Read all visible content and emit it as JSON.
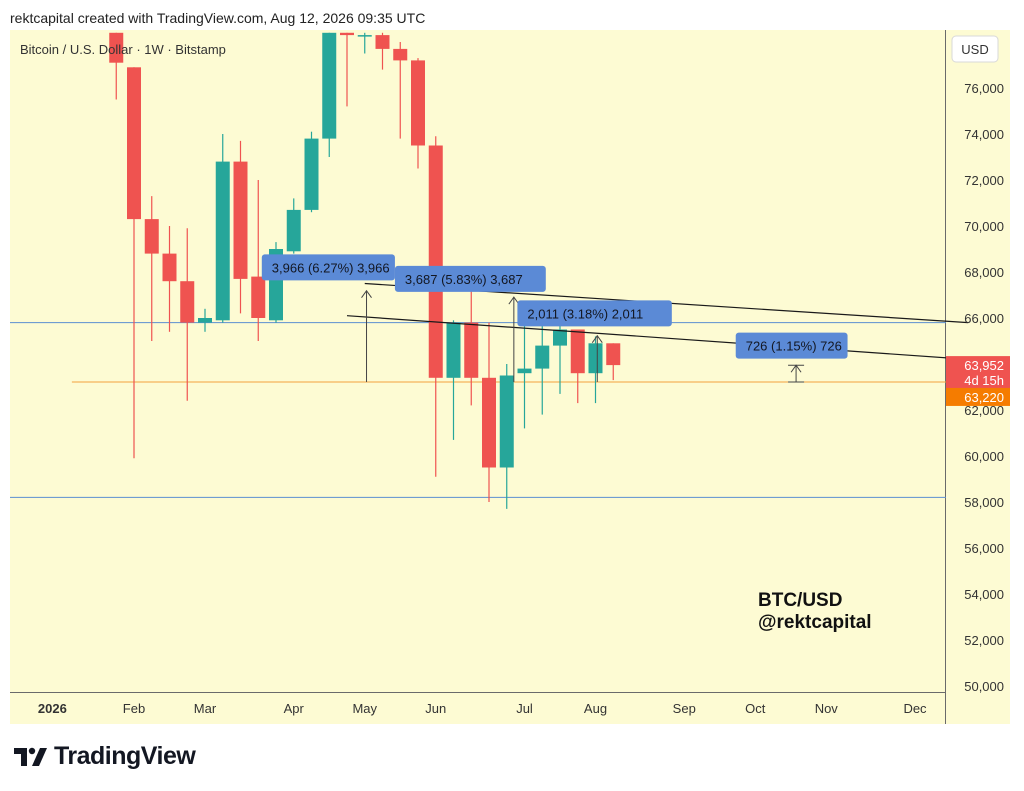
{
  "header": {
    "text": "rektcapital created with TradingView.com, Aug 12, 2026 09:35 UTC"
  },
  "footer": {
    "logo_text": "TradingView"
  },
  "chart_data": {
    "type": "candlestick",
    "symbol_label": "Bitcoin / U.S. Dollar · 1W · Bitstamp",
    "currency_label": "USD",
    "ylim": [
      49500,
      78400
    ],
    "y_ticks": [
      {
        "v": 50000,
        "label": "50,000"
      },
      {
        "v": 52000,
        "label": "52,000"
      },
      {
        "v": 54000,
        "label": "54,000"
      },
      {
        "v": 56000,
        "label": "56,000"
      },
      {
        "v": 58000,
        "label": "58,000"
      },
      {
        "v": 60000,
        "label": "60,000"
      },
      {
        "v": 62000,
        "label": "62,000"
      },
      {
        "v": 64000,
        "label": "64,000"
      },
      {
        "v": 66000,
        "label": "66,000"
      },
      {
        "v": 68000,
        "label": "68,000"
      },
      {
        "v": 70000,
        "label": "70,000"
      },
      {
        "v": 72000,
        "label": "72,000"
      },
      {
        "v": 74000,
        "label": "74,000"
      },
      {
        "v": 76000,
        "label": "76,000"
      }
    ],
    "x_labels": [
      {
        "week": -4.6,
        "label": "2026",
        "bold": true
      },
      {
        "week": 0,
        "label": "Feb"
      },
      {
        "week": 4,
        "label": "Mar"
      },
      {
        "week": 9,
        "label": "Apr"
      },
      {
        "week": 13,
        "label": "May"
      },
      {
        "week": 17,
        "label": "Jun"
      },
      {
        "week": 22,
        "label": "Jul"
      },
      {
        "week": 26,
        "label": "Aug"
      },
      {
        "week": 31,
        "label": "Sep"
      },
      {
        "week": 35,
        "label": "Oct"
      },
      {
        "week": 39,
        "label": "Nov"
      },
      {
        "week": 44,
        "label": "Dec"
      }
    ],
    "candles": [
      {
        "week": -1,
        "o": 78400,
        "h": 78400,
        "c": 77100,
        "l": 75500
      },
      {
        "week": 0,
        "o": 76900,
        "h": 76900,
        "c": 70300,
        "l": 59900
      },
      {
        "week": 1,
        "o": 70300,
        "h": 71300,
        "c": 68800,
        "l": 65000
      },
      {
        "week": 2,
        "o": 68800,
        "h": 70000,
        "c": 67600,
        "l": 65400
      },
      {
        "week": 3,
        "o": 67600,
        "h": 69900,
        "c": 65800,
        "l": 62400
      },
      {
        "week": 4,
        "o": 65800,
        "h": 66400,
        "c": 66000,
        "l": 65400
      },
      {
        "week": 5,
        "o": 65900,
        "h": 74000,
        "c": 72800,
        "l": 65800
      },
      {
        "week": 6,
        "o": 72800,
        "h": 73700,
        "c": 67700,
        "l": 66200
      },
      {
        "week": 7,
        "o": 67800,
        "h": 72000,
        "c": 66000,
        "l": 65000
      },
      {
        "week": 8,
        "o": 65900,
        "h": 69300,
        "c": 69000,
        "l": 65800
      },
      {
        "week": 9,
        "o": 68900,
        "h": 71200,
        "c": 70700,
        "l": 68800
      },
      {
        "week": 10,
        "o": 70700,
        "h": 74100,
        "c": 73800,
        "l": 70600
      },
      {
        "week": 11,
        "o": 73800,
        "h": 78400,
        "c": 78400,
        "l": 73000
      },
      {
        "week": 12,
        "o": 78400,
        "h": 78400,
        "c": 78300,
        "l": 75200
      },
      {
        "week": 13,
        "o": 78300,
        "h": 78400,
        "c": 78300,
        "l": 77500
      },
      {
        "week": 14,
        "o": 78300,
        "h": 78400,
        "c": 77700,
        "l": 76800
      },
      {
        "week": 15,
        "o": 77700,
        "h": 78000,
        "c": 77200,
        "l": 73800
      },
      {
        "week": 16,
        "o": 77200,
        "h": 77300,
        "c": 73500,
        "l": 72500
      },
      {
        "week": 17,
        "o": 73500,
        "h": 73900,
        "c": 63400,
        "l": 59100
      },
      {
        "week": 18,
        "o": 63400,
        "h": 65900,
        "c": 65800,
        "l": 60700
      },
      {
        "week": 19,
        "o": 65800,
        "h": 67200,
        "c": 63400,
        "l": 62200
      },
      {
        "week": 20,
        "o": 63400,
        "h": 65800,
        "c": 59500,
        "l": 58000
      },
      {
        "week": 21,
        "o": 59500,
        "h": 64000,
        "c": 63500,
        "l": 57700
      },
      {
        "week": 22,
        "o": 63600,
        "h": 66000,
        "c": 63800,
        "l": 61200
      },
      {
        "week": 23,
        "o": 63800,
        "h": 66000,
        "c": 64800,
        "l": 61800
      },
      {
        "week": 24,
        "o": 64800,
        "h": 65900,
        "c": 65500,
        "l": 62700
      },
      {
        "week": 25,
        "o": 65500,
        "h": 65500,
        "c": 63600,
        "l": 62300
      },
      {
        "week": 26,
        "o": 63600,
        "h": 65200,
        "c": 64900,
        "l": 62300
      },
      {
        "week": 27,
        "o": 64900,
        "h": 64900,
        "c": 63952,
        "l": 63300
      }
    ],
    "hlines": [
      {
        "v": 65800,
        "color": "#5b8fd1"
      },
      {
        "v": 58200,
        "color": "#5b8fd1"
      },
      {
        "v": 63220,
        "color": "#f2a13c",
        "from_week": -3.5
      }
    ],
    "trendlines": [
      {
        "w1": 13,
        "v1": 67500,
        "w2": 47,
        "v2": 65800
      },
      {
        "w1": 12,
        "v1": 66100,
        "w2": 47,
        "v2": 64200
      }
    ],
    "measures": [
      {
        "label": "3,966 (6.27%) 3,966",
        "w": 13.1,
        "from": 63220,
        "to": 67186,
        "box_w1": 7.2,
        "box_w2": 14.7,
        "box_v": 68200
      },
      {
        "label": "3,687 (5.83%) 3,687",
        "w": 21.4,
        "from": 63220,
        "to": 66907,
        "box_w1": 14.7,
        "box_w2": 23.2,
        "box_v": 67700
      },
      {
        "label": "2,011 (3.18%) 2,011",
        "w": 26.1,
        "from": 63220,
        "to": 65231,
        "box_w1": 21.6,
        "box_w2": 30.3,
        "box_v": 66200
      },
      {
        "label": "726 (1.15%) 726",
        "w": 37.3,
        "from": 63220,
        "to": 63946,
        "box_w1": 33.9,
        "box_w2": 40.2,
        "box_v": 64800
      }
    ],
    "price_labels": {
      "last_price": {
        "v": 63952,
        "label": "63,952",
        "countdown": "4d 15h",
        "color": "#ef5350"
      },
      "level": {
        "v": 63220,
        "label": "63,220",
        "color": "#f57c00"
      }
    },
    "watermark": [
      "BTC/USD",
      "@rektcapital"
    ],
    "colors": {
      "background": "#fdfbd3",
      "up": "#26a69a",
      "down": "#ef5350"
    }
  }
}
